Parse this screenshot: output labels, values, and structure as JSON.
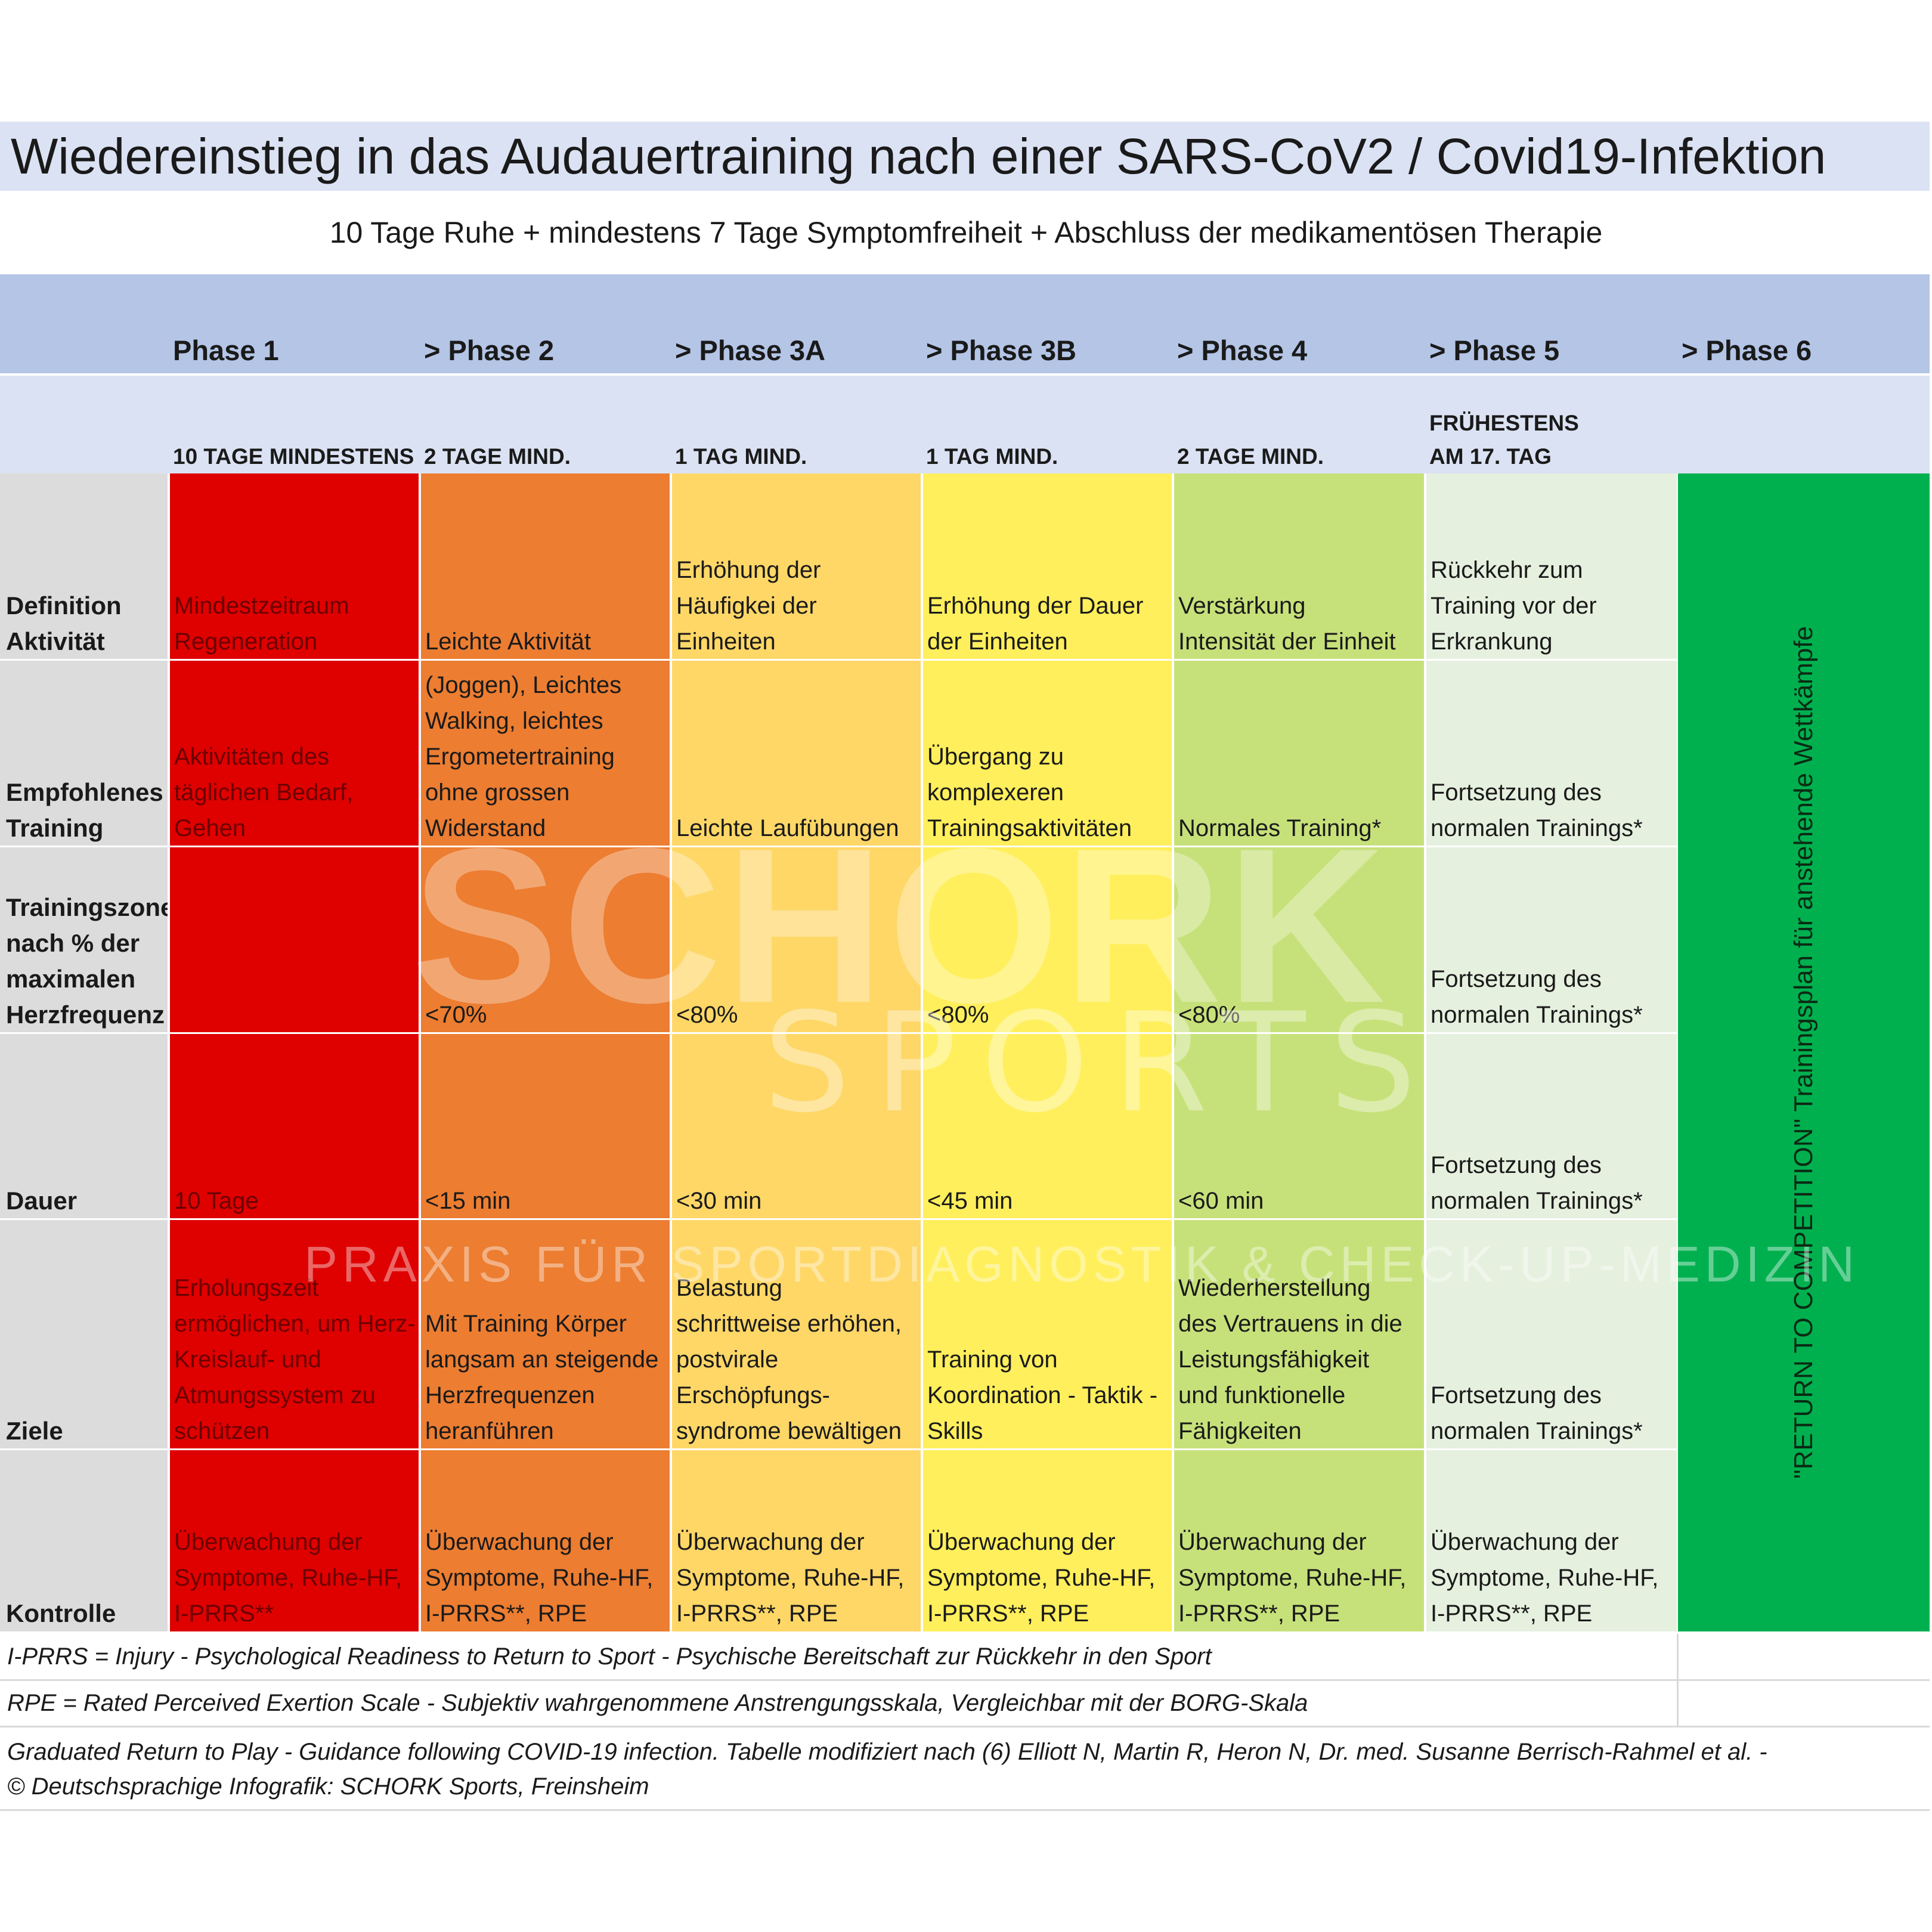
{
  "title": "Wiedereinstieg in das Audauertraining nach einer SARS-CoV2 / Covid19-Infektion",
  "subtitle": "10 Tage Ruhe + mindestens 7 Tage Symptomfreiheit + Abschluss der medikamentösen Therapie",
  "colors": {
    "phase1": "#df0000",
    "phase2": "#ec7d31",
    "phase3a": "#fed767",
    "phase3b": "#ffef5c",
    "phase4": "#c7e17a",
    "phase5": "#e6f0df",
    "phase6": "#00b04f"
  },
  "phases": [
    {
      "name": "Phase 1",
      "min": "10 TAGE MINDESTENS"
    },
    {
      "name": "> Phase 2",
      "min": "2 TAGE MIND."
    },
    {
      "name": "> Phase 3A",
      "min": "1 TAG MIND."
    },
    {
      "name": "> Phase 3B",
      "min": "1 TAG MIND."
    },
    {
      "name": "> Phase 4",
      "min": "2 TAGE MIND."
    },
    {
      "name": "> Phase 5",
      "min_l1": "FRÜHESTENS",
      "min_l2": "AM 17. TAG"
    },
    {
      "name": "> Phase 6"
    }
  ],
  "rows": [
    {
      "label_l1": "Definition",
      "label_l2": "Aktivität",
      "cells": [
        "Mindestzeitraum\nRegeneration",
        "Leichte Aktivität",
        "Erhöhung der\nHäufigkei der\nEinheiten",
        "Erhöhung der Dauer\nder Einheiten",
        "Verstärkung\nIntensität der Einheit",
        "Rückkehr zum\nTraining vor der\nErkrankung"
      ]
    },
    {
      "label_l1": "Empfohlenes",
      "label_l2": "Training",
      "cells": [
        "Aktivitäten des\ntäglichen Bedarf,\nGehen",
        "(Joggen), Leichtes\nWalking, leichtes\nErgometertraining\nohne grossen\nWiderstand",
        "Leichte Laufübungen",
        "Übergang zu\nkomplexeren\nTrainingsaktivitäten",
        "Normales Training*",
        "Fortsetzung des\nnormalen Trainings*"
      ]
    },
    {
      "label_l1": "Trainingszone",
      "label_l2": "nach % der",
      "label_l3": "maximalen",
      "label_l4": "Herzfrequenz",
      "cells": [
        "",
        "<70%",
        "<80%",
        "<80%",
        "<80%",
        "Fortsetzung des\nnormalen Trainings*"
      ]
    },
    {
      "label_l1": "Dauer",
      "cells": [
        "10 Tage",
        "<15 min",
        "<30 min",
        "<45 min",
        "<60 min",
        "Fortsetzung des\nnormalen Trainings*"
      ]
    },
    {
      "label_l1": "Ziele",
      "cells": [
        "Erholungszeit\nermöglichen, um Herz-\nKreislauf- und\nAtmungssystem zu\nschützen",
        "Mit Training Körper\nlangsam an steigende\nHerzfrequenzen\nheranführen",
        "Belastung\nschrittweise erhöhen,\npostvirale\nErschöpfungs-\nsyndrome bewältigen",
        "Training von\nKoordination - Taktik -\nSkills",
        "Wiederherstellung\ndes Vertrauens in die\nLeistungsfähigkeit\nund funktionelle\nFähigkeiten",
        "Fortsetzung des\nnormalen Trainings*"
      ]
    },
    {
      "label_l1": "Kontrolle",
      "cells": [
        "Überwachung der\nSymptome, Ruhe-HF,\nI-PRRS**",
        "Überwachung der\nSymptome, Ruhe-HF,\nI-PRRS**, RPE",
        "Überwachung der\nSymptome, Ruhe-HF,\nI-PRRS**, RPE",
        "Überwachung der\nSymptome, Ruhe-HF,\nI-PRRS**, RPE",
        "Überwachung der\nSymptome, Ruhe-HF,\nI-PRRS**, RPE",
        "Überwachung der\nSymptome, Ruhe-HF,\nI-PRRS**, RPE"
      ]
    }
  ],
  "phase6_text": "\"RETURN TO COMPETITION\" Trainingsplan für anstehende Wettkämpfe",
  "watermark": {
    "line1": "SCHORK",
    "line2": "SPORTS",
    "line3": "PRAXIS FÜR SPORTDIAGNOSTIK & CHECK-UP-MEDIZIN"
  },
  "notes": {
    "iprrs": "I-PRRS = Injury - Psychological Readiness to Return to Sport - Psychische Bereitschaft zur Rückkehr in den Sport",
    "rpe": "RPE = Rated Perceived Exertion Scale - Subjektiv wahrgenommene Anstrengungsskala, Vergleichbar mit der BORG-Skala",
    "source_l1": "Graduated Return to Play - Guidance following COVID-19 infection. Tabelle modifiziert nach (6) Elliott N, Martin R, Heron N, Dr. med. Susanne Berrisch-Rahmel et al. -",
    "source_l2": "© Deutschsprachige Infografik: SCHORK Sports, Freinsheim"
  }
}
